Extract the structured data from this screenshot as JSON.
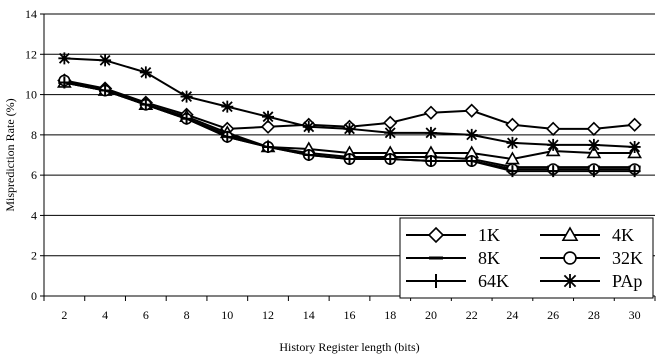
{
  "chart_data": {
    "type": "line",
    "xlabel": "History Register length (bits)",
    "ylabel": "Misprediction Rate (%)",
    "x": [
      2,
      4,
      6,
      8,
      10,
      12,
      14,
      16,
      18,
      20,
      22,
      24,
      26,
      28,
      30
    ],
    "ylim": [
      0,
      14
    ],
    "yticks": [
      0,
      2,
      4,
      6,
      8,
      10,
      12,
      14
    ],
    "grid": "horizontal",
    "legend_position": "bottom-right",
    "series": [
      {
        "name": "1K",
        "marker": "diamond",
        "values": [
          10.7,
          10.3,
          9.6,
          9.0,
          8.3,
          8.4,
          8.5,
          8.4,
          8.6,
          9.1,
          9.2,
          8.5,
          8.3,
          8.3,
          8.5
        ]
      },
      {
        "name": "4K",
        "marker": "triangle",
        "values": [
          10.6,
          10.2,
          9.5,
          8.9,
          8.1,
          7.4,
          7.3,
          7.1,
          7.1,
          7.1,
          7.1,
          6.8,
          7.2,
          7.1,
          7.1
        ]
      },
      {
        "name": "8K",
        "marker": "dash",
        "values": [
          10.6,
          10.2,
          9.5,
          8.8,
          8.0,
          7.4,
          7.1,
          6.9,
          6.9,
          6.9,
          6.8,
          6.4,
          6.4,
          6.4,
          6.4
        ]
      },
      {
        "name": "32K",
        "marker": "circle",
        "values": [
          10.7,
          10.2,
          9.5,
          8.8,
          7.9,
          7.4,
          7.0,
          6.8,
          6.8,
          6.7,
          6.7,
          6.3,
          6.3,
          6.3,
          6.3
        ]
      },
      {
        "name": "64K",
        "marker": "plus",
        "values": [
          10.6,
          10.2,
          9.5,
          8.8,
          7.9,
          7.4,
          7.0,
          6.8,
          6.8,
          6.7,
          6.7,
          6.2,
          6.2,
          6.2,
          6.2
        ]
      },
      {
        "name": "PAp",
        "marker": "star",
        "values": [
          11.8,
          11.7,
          11.1,
          9.9,
          9.4,
          8.9,
          8.4,
          8.3,
          8.1,
          8.1,
          8.0,
          7.6,
          7.5,
          7.5,
          7.4
        ]
      }
    ]
  }
}
